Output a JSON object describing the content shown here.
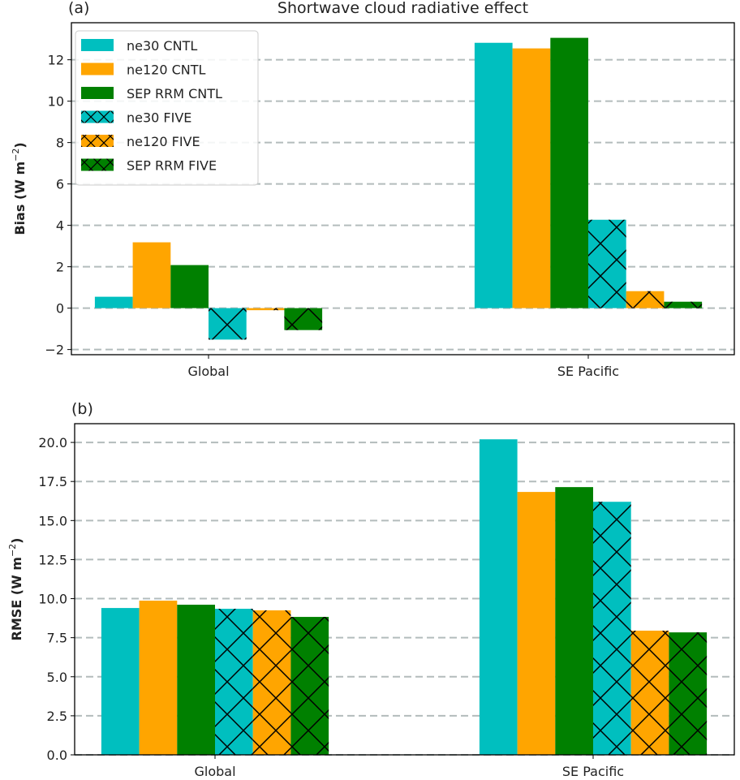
{
  "chart_data": [
    {
      "type": "bar",
      "panel_label": "(a)",
      "title": "Shortwave cloud radiative effect",
      "xlabel": "",
      "ylabel": "Bias (W m",
      "ylabel_exp": "−2",
      "ylabel_close": ")",
      "categories": [
        "Global",
        "SE Pacific"
      ],
      "ylim": [
        -2.25,
        13.79
      ],
      "yticks": [
        -2,
        0,
        2,
        4,
        6,
        8,
        10,
        12
      ],
      "ytick_labels": [
        "−2",
        "0",
        "2",
        "4",
        "6",
        "8",
        "10",
        "12"
      ],
      "grid": "horizontal dashed",
      "legend_position": "top-left",
      "series": [
        {
          "name": "ne30 CNTL",
          "color": "#00bfbf",
          "hatch": false,
          "values": [
            0.55,
            12.82
          ]
        },
        {
          "name": "ne120 CNTL",
          "color": "#ffa500",
          "hatch": false,
          "values": [
            3.18,
            12.55
          ]
        },
        {
          "name": "SEP RRM CNTL",
          "color": "#008000",
          "hatch": false,
          "values": [
            2.08,
            13.06
          ]
        },
        {
          "name": "ne30 FIVE",
          "color": "#00bfbf",
          "hatch": true,
          "values": [
            -1.52,
            4.27
          ]
        },
        {
          "name": "ne120 FIVE",
          "color": "#ffa500",
          "hatch": true,
          "values": [
            -0.1,
            0.82
          ]
        },
        {
          "name": "SEP RRM FIVE",
          "color": "#008000",
          "hatch": true,
          "values": [
            -1.06,
            0.31
          ]
        }
      ]
    },
    {
      "type": "bar",
      "panel_label": "(b)",
      "title": "",
      "xlabel": "",
      "ylabel": "RMSE (W m",
      "ylabel_exp": "−2",
      "ylabel_close": ")",
      "categories": [
        "Global",
        "SE Pacific"
      ],
      "ylim": [
        0,
        21.2
      ],
      "yticks": [
        0,
        2.5,
        5,
        7.5,
        10,
        12.5,
        15,
        17.5,
        20
      ],
      "ytick_labels": [
        "0.0",
        "2.5",
        "5.0",
        "7.5",
        "10.0",
        "12.5",
        "15.0",
        "17.5",
        "20.0"
      ],
      "grid": "horizontal dashed",
      "series": [
        {
          "name": "ne30 CNTL",
          "color": "#00bfbf",
          "hatch": false,
          "values": [
            9.4,
            20.2
          ]
        },
        {
          "name": "ne120 CNTL",
          "color": "#ffa500",
          "hatch": false,
          "values": [
            9.87,
            16.83
          ]
        },
        {
          "name": "SEP RRM CNTL",
          "color": "#008000",
          "hatch": false,
          "values": [
            9.61,
            17.14
          ]
        },
        {
          "name": "ne30 FIVE",
          "color": "#00bfbf",
          "hatch": true,
          "values": [
            9.35,
            16.2
          ]
        },
        {
          "name": "ne120 FIVE",
          "color": "#ffa500",
          "hatch": true,
          "values": [
            9.25,
            7.95
          ]
        },
        {
          "name": "SEP RRM FIVE",
          "color": "#008000",
          "hatch": true,
          "values": [
            8.83,
            7.84
          ]
        }
      ]
    }
  ]
}
